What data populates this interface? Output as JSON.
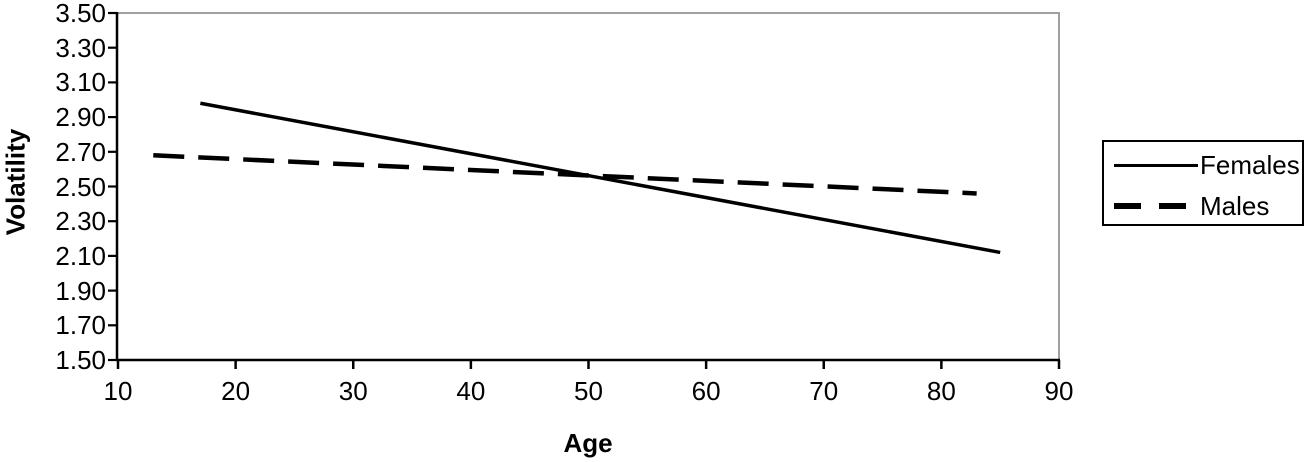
{
  "chart_data": {
    "type": "line",
    "title": "",
    "xlabel": "Age",
    "ylabel": "Volatility",
    "xlim": [
      10,
      90
    ],
    "ylim": [
      1.5,
      3.5
    ],
    "grid": false,
    "legend_position": "right-outside",
    "x_ticks": [
      {
        "value": 10,
        "label": "10"
      },
      {
        "value": 20,
        "label": "20"
      },
      {
        "value": 30,
        "label": "30"
      },
      {
        "value": 40,
        "label": "40"
      },
      {
        "value": 50,
        "label": "50"
      },
      {
        "value": 60,
        "label": "60"
      },
      {
        "value": 70,
        "label": "70"
      },
      {
        "value": 80,
        "label": "80"
      },
      {
        "value": 90,
        "label": "90"
      }
    ],
    "y_ticks": [
      {
        "value": 3.5,
        "label": "3.50"
      },
      {
        "value": 3.3,
        "label": "3.30"
      },
      {
        "value": 3.1,
        "label": "3.10"
      },
      {
        "value": 2.9,
        "label": "2.90"
      },
      {
        "value": 2.7,
        "label": "2.70"
      },
      {
        "value": 2.5,
        "label": "2.50"
      },
      {
        "value": 2.3,
        "label": "2.30"
      },
      {
        "value": 2.1,
        "label": "2.10"
      },
      {
        "value": 1.9,
        "label": "1.90"
      },
      {
        "value": 1.7,
        "label": "1.70"
      },
      {
        "value": 1.5,
        "label": "1.50"
      }
    ],
    "series": [
      {
        "name": "Females",
        "line_style": "solid",
        "color": "#000000",
        "stroke_width": 3.5,
        "points": [
          [
            17,
            2.98
          ],
          [
            85,
            2.12
          ]
        ]
      },
      {
        "name": "Males",
        "line_style": "dashed",
        "color": "#000000",
        "stroke_width": 4.5,
        "points": [
          [
            13,
            2.68
          ],
          [
            83,
            2.46
          ]
        ]
      }
    ]
  },
  "colors": {
    "background": "#ffffff",
    "axis": "#000000",
    "plot_border": "#a0a0a0",
    "text": "#000000",
    "legend_border": "#000000"
  }
}
